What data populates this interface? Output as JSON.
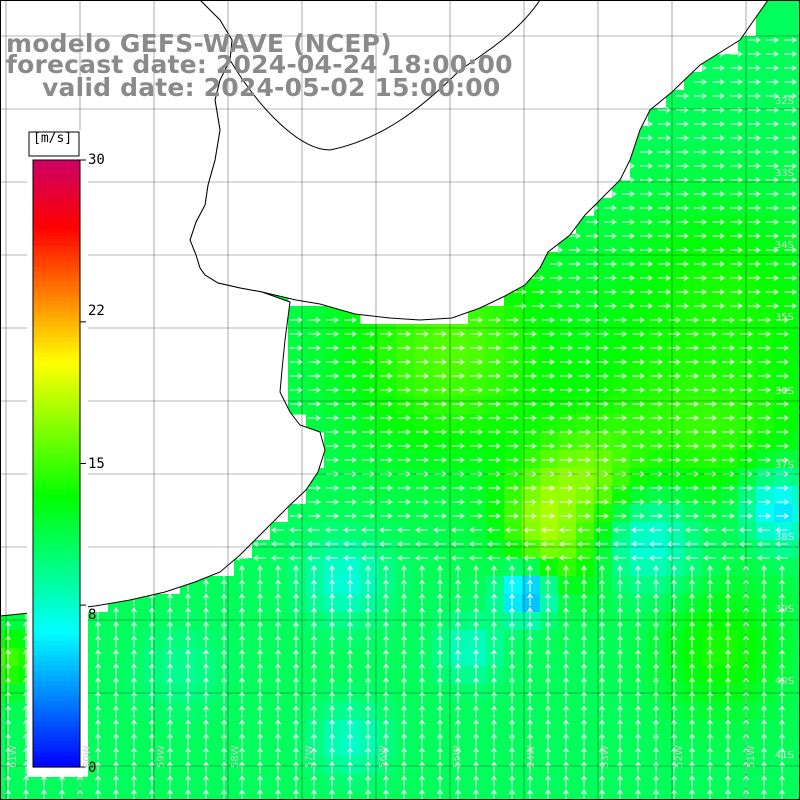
{
  "titles": {
    "line1": "modelo GEFS-WAVE (NCEP)",
    "line2": "forecast date: 2024-04-24 18:00:00",
    "line3": "valid date: 2024-05-02 15:00:00"
  },
  "colorbar": {
    "unit": "[m/s]",
    "ticks": [
      {
        "value": 30,
        "label": "30"
      },
      {
        "value": 22,
        "label": "22"
      },
      {
        "value": 15,
        "label": "15"
      },
      {
        "value": 8,
        "label": "8"
      },
      {
        "value": 0,
        "label": "0"
      }
    ],
    "range": [
      0,
      30
    ],
    "colors": [
      "#0000ff",
      "#0080ff",
      "#00ffff",
      "#00ff80",
      "#00ff00",
      "#80ff00",
      "#ffff00",
      "#ff8000",
      "#ff0000",
      "#cc0066"
    ]
  },
  "latitude_labels": [
    "32S",
    "33S",
    "34S",
    "35S",
    "36S",
    "37S",
    "38S",
    "39S",
    "40S",
    "41S"
  ],
  "longitude_labels": [
    "61W",
    "60W",
    "59W",
    "58W",
    "57W",
    "56W",
    "55W",
    "54W",
    "53W",
    "52W",
    "51W"
  ],
  "map": {
    "field": "wind speed",
    "ocean_default_speed": 11,
    "land_color": "#ffffff",
    "grid_color": "#000000",
    "arrow_color": "#ffffff"
  }
}
